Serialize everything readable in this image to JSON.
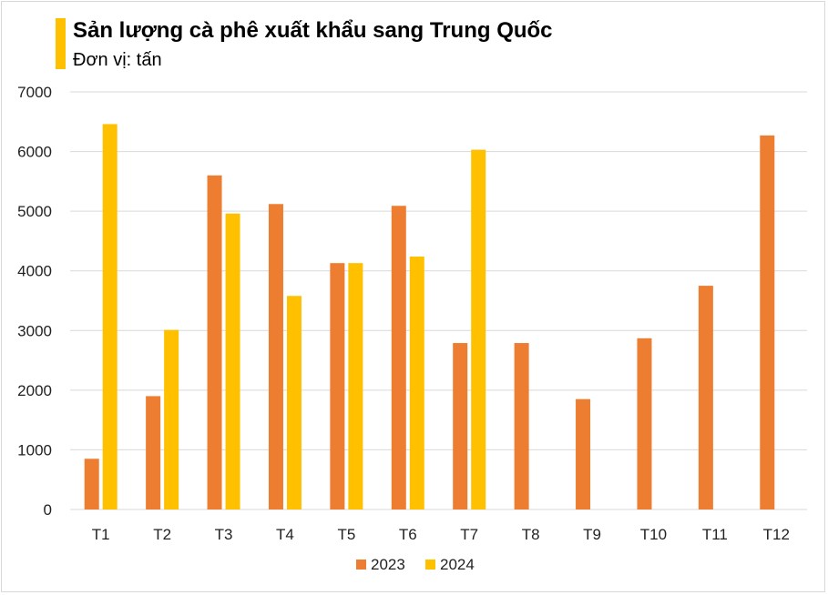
{
  "title": "Sản lượng cà phê xuất khẩu sang Trung Quốc",
  "subtitle": "Đơn vị: tấn",
  "colors": {
    "s2023": "#ed7d31",
    "s2024": "#ffc000",
    "grid": "#d9d9d9",
    "accent": "#ffc000"
  },
  "chart_data": {
    "type": "bar",
    "title": "Sản lượng cà phê xuất khẩu sang Trung Quốc",
    "subtitle": "Đơn vị: tấn",
    "categories": [
      "T1",
      "T2",
      "T3",
      "T4",
      "T5",
      "T6",
      "T7",
      "T8",
      "T9",
      "T10",
      "T11",
      "T12"
    ],
    "series": [
      {
        "name": "2023",
        "color": "#ed7d31",
        "values": [
          850,
          1900,
          5600,
          5120,
          4130,
          5090,
          2790,
          2790,
          1850,
          2870,
          3750,
          6270
        ]
      },
      {
        "name": "2024",
        "color": "#ffc000",
        "values": [
          6460,
          3010,
          4960,
          3580,
          4130,
          4240,
          6030,
          null,
          null,
          null,
          null,
          null
        ]
      }
    ],
    "ylim": [
      0,
      7000
    ],
    "yticks": [
      0,
      1000,
      2000,
      3000,
      4000,
      5000,
      6000,
      7000
    ],
    "grid": true,
    "legend": "bottom"
  }
}
